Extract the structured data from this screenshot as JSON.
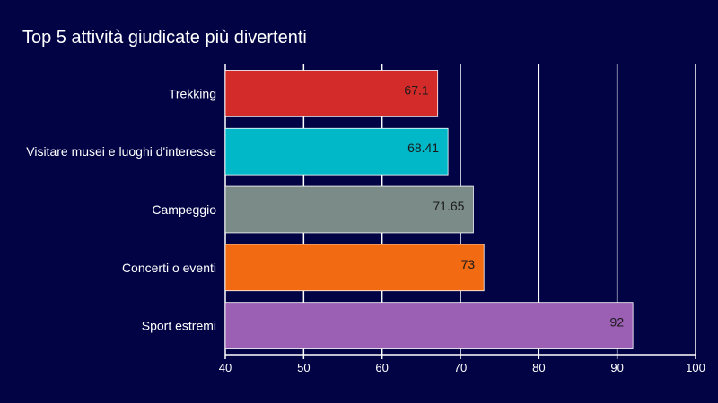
{
  "chart_data": {
    "type": "bar",
    "orientation": "horizontal",
    "title": "Top 5 attività giudicate più divertenti",
    "xlabel": "",
    "ylabel": "",
    "categories": [
      "Trekking",
      "Visitare musei e luoghi d'interesse",
      "Campeggio",
      "Concerti o eventi",
      "Sport estremi"
    ],
    "values": [
      67.1,
      68.41,
      71.65,
      73,
      92
    ],
    "colors": [
      "#d32a2a",
      "#00b8c8",
      "#7b8b87",
      "#f26a12",
      "#9b5fb4"
    ],
    "xlim": [
      40,
      100
    ],
    "xticks": [
      40,
      50,
      60,
      70,
      80,
      90,
      100
    ],
    "grid": true,
    "legend": "none"
  }
}
